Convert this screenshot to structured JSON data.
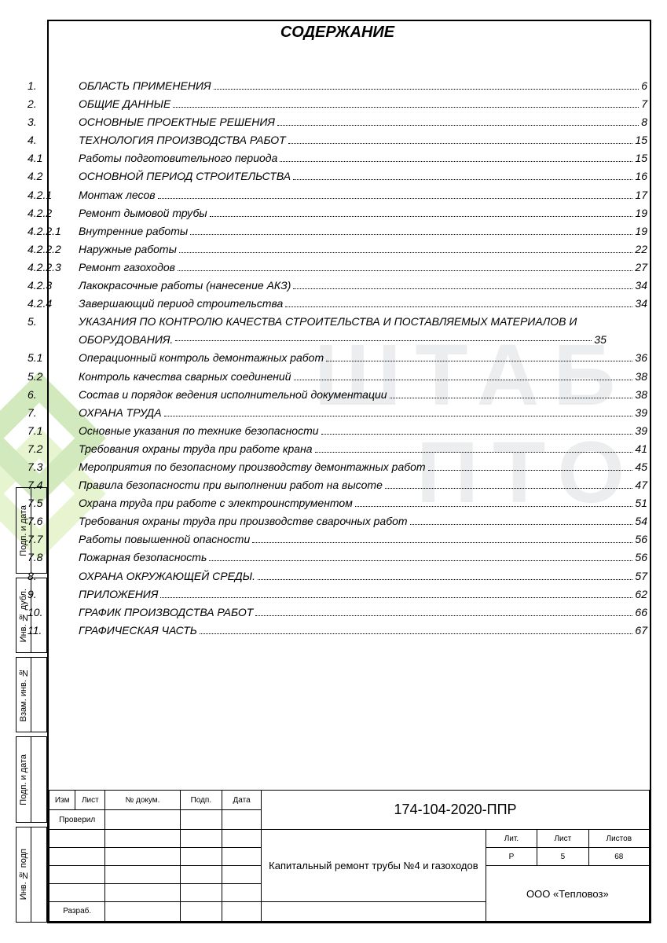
{
  "title": "СОДЕРЖАНИЕ",
  "toc": [
    {
      "num": "1.",
      "text": "ОБЛАСТЬ ПРИМЕНЕНИЯ",
      "page": "6"
    },
    {
      "num": "2.",
      "text": "ОБЩИЕ ДАННЫЕ",
      "page": "7"
    },
    {
      "num": "3.",
      "text": "ОСНОВНЫЕ ПРОЕКТНЫЕ РЕШЕНИЯ",
      "page": "8"
    },
    {
      "num": "4.",
      "text": "ТЕХНОЛОГИЯ ПРОИЗВОДСТВА РАБОТ",
      "page": "15"
    },
    {
      "num": "4.1",
      "text": "Работы подготовительного периода",
      "page": "15"
    },
    {
      "num": "4.2",
      "text": "ОСНОВНОЙ ПЕРИОД СТРОИТЕЛЬСТВА",
      "page": "16"
    },
    {
      "num": "4.2.1",
      "text": "Монтаж лесов",
      "page": "17"
    },
    {
      "num": "4.2.2",
      "text": "Ремонт дымовой трубы",
      "page": "19"
    },
    {
      "num": "4.2.2.1",
      "text": "Внутренние работы",
      "page": "19"
    },
    {
      "num": "4.2.2.2",
      "text": "Наружные работы",
      "page": "22"
    },
    {
      "num": "4.2.2.3",
      "text": " Ремонт газоходов",
      "page": "27"
    },
    {
      "num": "4.2.3",
      "text": "Лакокрасочные работы (нанесение АКЗ)",
      "page": "34"
    },
    {
      "num": "4.2.4",
      "text": "Завершающий период строительства",
      "page": "34"
    },
    {
      "num": "5.",
      "text": "УКАЗАНИЯ ПО КОНТРОЛЮ КАЧЕСТВА СТРОИТЕЛЬСТВА И ПОСТАВЛЯЕМЫХ МАТЕРИАЛОВ И ОБОРУДОВАНИЯ.",
      "page": "35",
      "wrap": true
    },
    {
      "num": "5.1",
      "text": "Операционный контроль демонтажных работ",
      "page": "36"
    },
    {
      "num": "5.2",
      "text": "Контроль качества сварных соединений",
      "page": "38"
    },
    {
      "num": "6.",
      "text": "Состав и порядок ведения исполнительной документации",
      "page": "38"
    },
    {
      "num": "7.",
      "text": "ОХРАНА ТРУДА",
      "page": "39"
    },
    {
      "num": "7.1",
      "text": "Основные указания по технике безопасности",
      "page": "39"
    },
    {
      "num": "7.2",
      "text": "Требования охраны труда при работе крана",
      "page": "41"
    },
    {
      "num": "7.3",
      "text": "Мероприятия по безопасному производству демонтажных работ",
      "page": "45"
    },
    {
      "num": "7.4",
      "text": "Правила безопасности при выполнении работ на высоте",
      "page": "47"
    },
    {
      "num": "7.5",
      "text": "Охрана труда при работе с электроинструментом",
      "page": "51"
    },
    {
      "num": "7.6",
      "text": "Требования охраны труда при производстве сварочных работ",
      "page": "54"
    },
    {
      "num": "7.7",
      "text": "Работы повышенной опасности",
      "page": "56"
    },
    {
      "num": "7.8",
      "text": "Пожарная безопасность",
      "page": "56"
    },
    {
      "num": "8.",
      "text": "ОХРАНА ОКРУЖАЮЩЕЙ СРЕДЫ.",
      "page": "57"
    },
    {
      "num": "9.",
      "text": "ПРИЛОЖЕНИЯ",
      "page": "62"
    },
    {
      "num": "10.",
      "text": "ГРАФИК ПРОИЗВОДСТВА РАБОТ",
      "page": "66"
    },
    {
      "num": "11.",
      "text": "ГРАФИЧЕСКАЯ ЧАСТЬ",
      "page": "67"
    }
  ],
  "sidebar": {
    "s1": "Подп. и дата",
    "s2": "Инв. № дубл.",
    "s3": "Взам. инв. №",
    "s4": "Подп. и дата",
    "s5": "Инв. № подп"
  },
  "stamp": {
    "col_izm": "Изм",
    "col_list": "Лист",
    "col_docnum": "№ докум.",
    "col_podp": "Подп.",
    "col_data": "Дата",
    "proveril": "Проверил",
    "razrab": "Разраб.",
    "doc_code": "174-104-2020-ППР",
    "doc_title": "Капитальный ремонт трубы №4 и газоходов",
    "lit_h": "Лит.",
    "list_h": "Лист",
    "listov_h": "Листов",
    "lit_v": "Р",
    "list_v": "5",
    "listov_v": "68",
    "org": "ООО «Тепловоз»"
  },
  "watermark": {
    "line1": "ШТАБ",
    "line2": "ПТО"
  },
  "colors": {
    "text": "#000000",
    "wm_text": "#c9ccce",
    "wm_green1": "#7bc143",
    "wm_green2": "#b8e07a",
    "bg": "#ffffff"
  }
}
